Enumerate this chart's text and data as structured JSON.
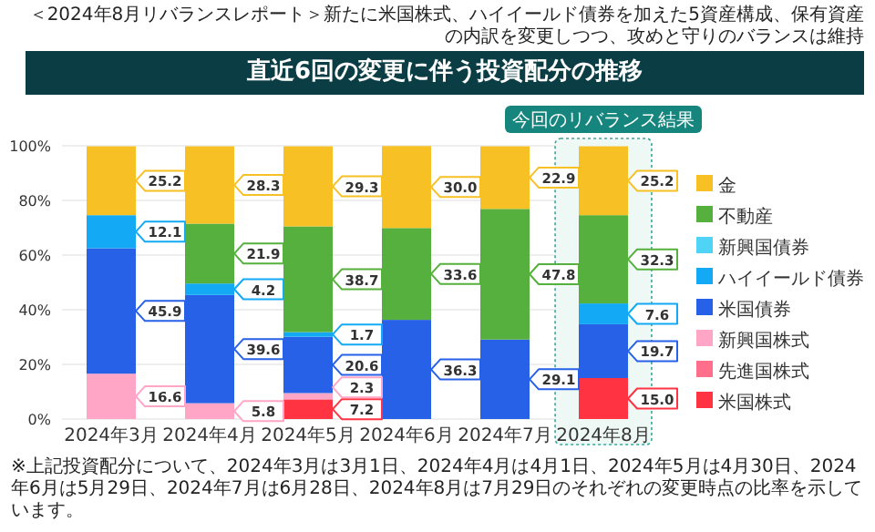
{
  "chart_data": {
    "type": "bar",
    "stacked": true,
    "title": "＜2024年8月リバランスレポート＞新たに米国株式、ハイイールド債券を加えた5資産構成、保有資産の内訳を変更しつつ、攻めと守りのバランスは維持",
    "subtitle": "直近6回の変更に伴う投資配分の推移",
    "categories": [
      "2024年3月",
      "2024年4月",
      "2024年5月",
      "2024年6月",
      "2024年7月",
      "2024年8月"
    ],
    "series": [
      {
        "name": "米国株式",
        "color": "#ff3341",
        "values": [
          null,
          null,
          7.2,
          null,
          null,
          15.0
        ]
      },
      {
        "name": "先進国株式",
        "color": "#ff6f8c",
        "values": [
          null,
          null,
          null,
          null,
          null,
          null
        ]
      },
      {
        "name": "新興国株式",
        "color": "#ffa6c6",
        "values": [
          16.6,
          5.8,
          2.3,
          null,
          null,
          null
        ]
      },
      {
        "name": "米国債券",
        "color": "#2761e8",
        "values": [
          45.9,
          39.6,
          20.6,
          36.3,
          29.1,
          19.7
        ]
      },
      {
        "name": "ハイイールド債券",
        "color": "#14a9f5",
        "values": [
          12.1,
          4.2,
          1.7,
          null,
          null,
          7.6
        ]
      },
      {
        "name": "新興国債券",
        "color": "#4fd4f5",
        "values": [
          null,
          null,
          null,
          null,
          null,
          null
        ]
      },
      {
        "name": "不動産",
        "color": "#55b03d",
        "values": [
          null,
          21.9,
          38.7,
          33.6,
          47.8,
          32.3
        ]
      },
      {
        "name": "金",
        "color": "#f7c025",
        "values": [
          25.2,
          28.3,
          29.3,
          30.0,
          22.9,
          25.2
        ]
      }
    ],
    "ylim": [
      0,
      100
    ],
    "yticks": [
      {
        "value": 0,
        "label": "0%"
      },
      {
        "value": 20,
        "label": "20%"
      },
      {
        "value": 40,
        "label": "40%"
      },
      {
        "value": 60,
        "label": "60%"
      },
      {
        "value": 80,
        "label": "80%"
      },
      {
        "value": 100,
        "label": "100%"
      }
    ],
    "grid": "y",
    "legend": "right",
    "value_labels": [
      [
        null,
        null,
        "7.2",
        null,
        null,
        "15.0"
      ],
      [
        null,
        null,
        null,
        null,
        null,
        null
      ],
      [
        "16.6",
        "5.8",
        "2.3",
        null,
        null,
        null
      ],
      [
        "45.9",
        "39.6",
        "20.6",
        "36.3",
        "29.1",
        "19.7"
      ],
      [
        "12.1",
        "4.2",
        "1.7",
        null,
        null,
        "7.6"
      ],
      [
        null,
        null,
        null,
        null,
        null,
        null
      ],
      [
        null,
        "21.9",
        "38.7",
        "33.6",
        "47.8",
        "32.3"
      ],
      [
        "25.2",
        "28.3",
        "29.3",
        "30.0",
        "22.9",
        "25.2"
      ]
    ],
    "annotations": [
      "今回のリバランス結果",
      "※上記投資配分について、2024年3月は3月1日、2024年4月は4月1日、2024年5月は4月30日、2024年6月は5月29日、2024年7月は6月28日、2024年8月は7月29日のそれぞれの変更時点の比率を示しています。"
    ]
  }
}
